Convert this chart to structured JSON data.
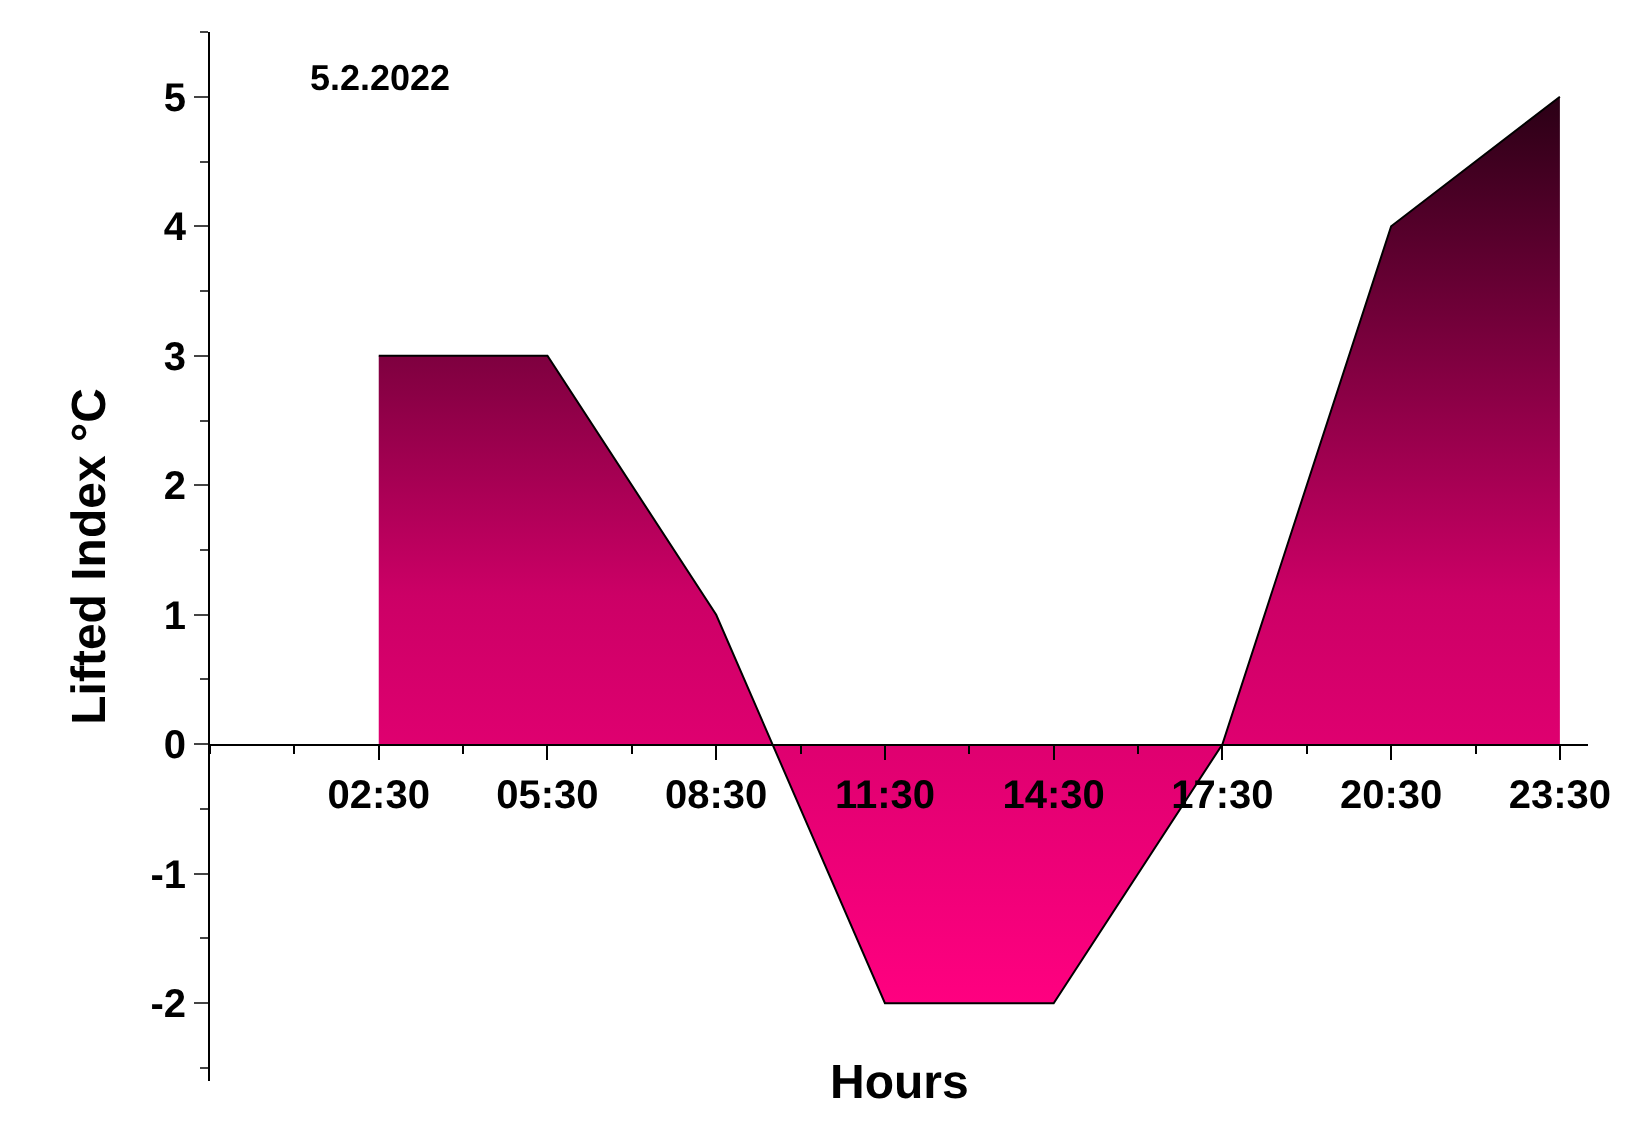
{
  "chart_data": {
    "type": "area",
    "xlabel": "Hours",
    "ylabel": "Lifted Index °C",
    "annotations": [
      "5.2.2022"
    ],
    "x": [
      2.5,
      5.5,
      8.5,
      11.5,
      14.5,
      17.5,
      20.5,
      23.5
    ],
    "series": [
      {
        "color": "#ff0080",
        "values": [
          3,
          3,
          1,
          -2,
          -2,
          0,
          4,
          5
        ]
      }
    ],
    "xlim": [
      -0.5,
      24
    ],
    "xticks": [
      {
        "value": 2.5,
        "label": "02:30"
      },
      {
        "value": 5.5,
        "label": "05:30"
      },
      {
        "value": 8.5,
        "label": "08:30"
      },
      {
        "value": 11.5,
        "label": "11:30"
      },
      {
        "value": 14.5,
        "label": "14:30"
      },
      {
        "value": 17.5,
        "label": "17:30"
      },
      {
        "value": 20.5,
        "label": "20:30"
      },
      {
        "value": 23.5,
        "label": "23:30"
      }
    ],
    "ylim": [
      -2.6,
      5.5
    ],
    "yticks": [
      -2,
      -1,
      0,
      1,
      2,
      3,
      4,
      5
    ],
    "marker": "none",
    "line_style": "solid"
  }
}
